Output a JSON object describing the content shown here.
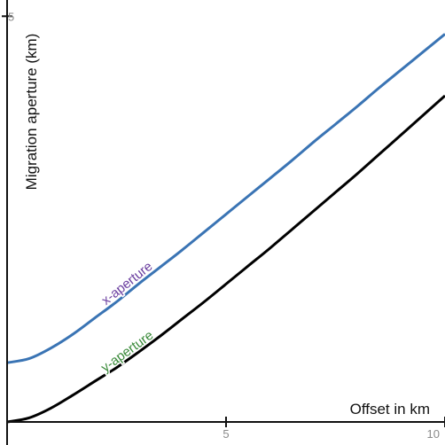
{
  "chart_data": {
    "type": "line",
    "title": "",
    "xlabel": "Offset in km",
    "ylabel": "Migration aperture (km)",
    "xlim": [
      0,
      10
    ],
    "ylim": [
      0,
      5.2
    ],
    "x_ticks": [
      5,
      10
    ],
    "y_ticks": [
      5
    ],
    "x_tick_labels": [
      "5",
      "10"
    ],
    "y_tick_labels": [
      "5"
    ],
    "grid": false,
    "legend": "none",
    "series": [
      {
        "name": "x-aperture",
        "color": "#3a74b4",
        "label_color": "#6b3fa0",
        "x": [
          0,
          0.5,
          1,
          1.5,
          2,
          2.5,
          3,
          3.5,
          4,
          4.5,
          5,
          5.5,
          6,
          6.5,
          7,
          7.5,
          8,
          8.5,
          9,
          9.5,
          10
        ],
        "y": [
          0.73,
          0.78,
          0.91,
          1.08,
          1.28,
          1.48,
          1.7,
          1.91,
          2.12,
          2.34,
          2.56,
          2.78,
          3.0,
          3.22,
          3.45,
          3.67,
          3.89,
          4.12,
          4.34,
          4.56,
          4.78
        ]
      },
      {
        "name": "y-aperture",
        "color": "#000000",
        "label_color": "#3a8a3a",
        "x": [
          0,
          0.5,
          1,
          1.5,
          2,
          2.5,
          3,
          3.5,
          4,
          4.5,
          5,
          5.5,
          6,
          6.5,
          7,
          7.5,
          8,
          8.5,
          9,
          9.5,
          10
        ],
        "y": [
          0.0,
          0.05,
          0.17,
          0.33,
          0.5,
          0.67,
          0.86,
          1.06,
          1.27,
          1.48,
          1.7,
          1.92,
          2.14,
          2.37,
          2.6,
          2.83,
          3.06,
          3.3,
          3.54,
          3.78,
          4.02
        ]
      }
    ]
  }
}
